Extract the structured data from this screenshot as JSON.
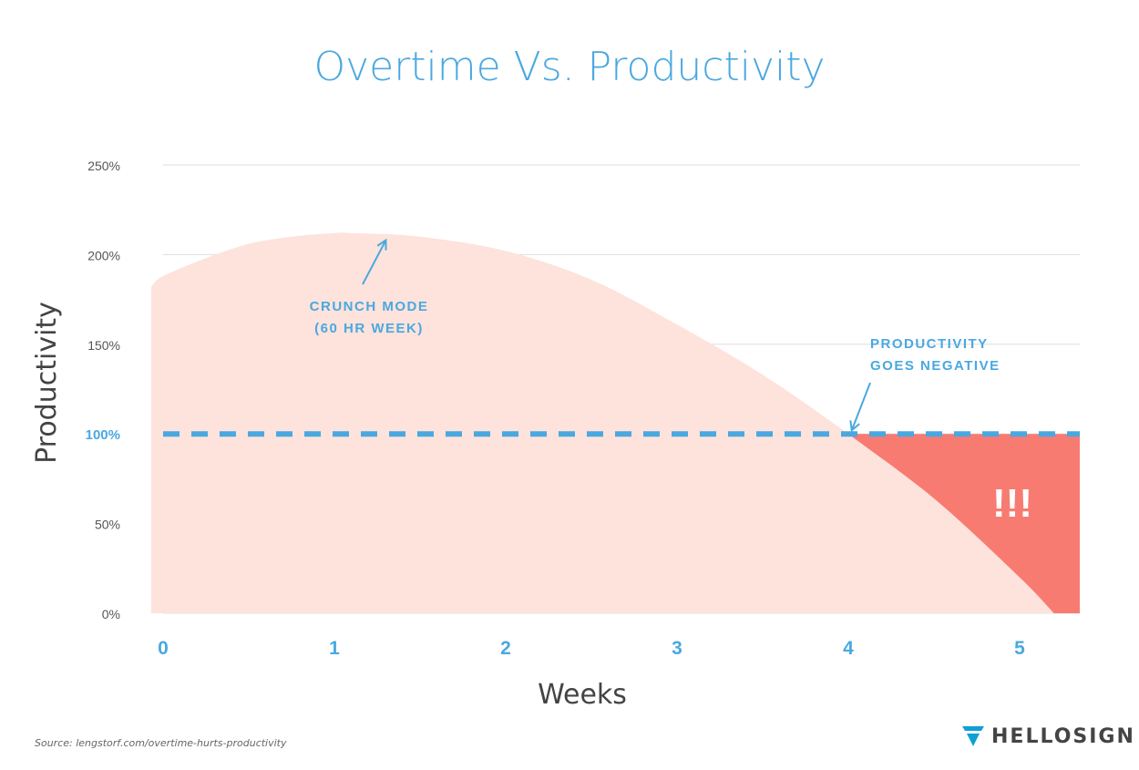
{
  "chart_data": {
    "type": "area",
    "title": "Overtime Vs. Productivity",
    "xlabel": "Weeks",
    "ylabel": "Productivity",
    "x_ticks": [
      "0",
      "1",
      "2",
      "3",
      "4",
      "5"
    ],
    "y_ticks": [
      "0%",
      "50%",
      "100%",
      "150%",
      "200%",
      "250%"
    ],
    "xlim": [
      -0.07,
      5.35
    ],
    "ylim": [
      0,
      250
    ],
    "grid": true,
    "baseline": {
      "value": 100,
      "label": "100%",
      "style": "dashed"
    },
    "series": [
      {
        "x": [
          -0.07,
          0.0,
          0.25,
          0.5,
          0.75,
          1.0,
          1.1,
          1.5,
          2.0,
          2.5,
          3.0,
          3.5,
          4.0,
          4.5,
          5.0,
          5.2
        ],
        "y": [
          182,
          188,
          198,
          206,
          210,
          212,
          212,
          210,
          202,
          186,
          161,
          133,
          100,
          64,
          20,
          0
        ]
      }
    ],
    "annotations": [
      {
        "lines": [
          "CRUNCH MODE",
          "(60 HR WEEK)"
        ],
        "arrow_to": [
          1.3,
          208
        ]
      },
      {
        "lines": [
          "PRODUCTIVITY",
          "GOES NEGATIVE"
        ],
        "arrow_to": [
          4.02,
          102
        ]
      },
      {
        "text": "!!!"
      }
    ]
  },
  "footer": {
    "source": "Source: lengstorf.com/overtime-hurts-productivity",
    "brand": "HELLOSIGN"
  },
  "colors": {
    "title": "#4aa8e0",
    "accent": "#4aa8e0",
    "area": "#fde3dc",
    "negative": "#f87b72",
    "grid": "#dddddd",
    "axis_text": "#555555"
  }
}
